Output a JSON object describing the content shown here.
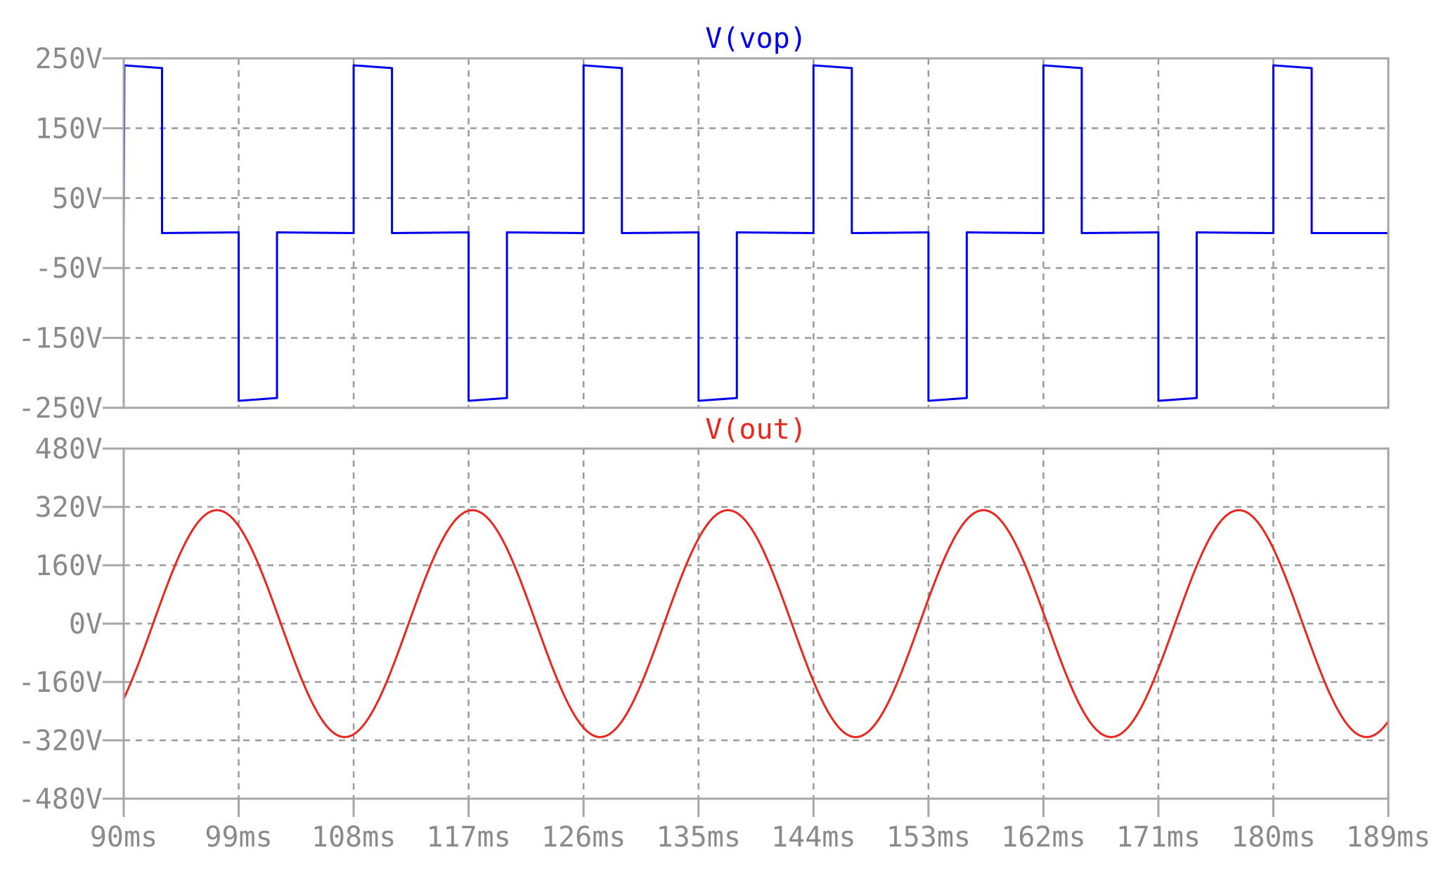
{
  "chart_data": [
    {
      "type": "line",
      "title": "V(vop)",
      "title_color": "#0000ee",
      "series": [
        {
          "name": "V(vop)",
          "color": "#0000ee",
          "x": [
            90,
            90.05,
            93,
            93,
            99,
            99,
            102,
            102,
            108,
            108,
            111,
            111,
            117,
            117,
            120,
            120,
            126,
            126,
            129,
            129,
            135,
            135,
            138,
            138,
            144,
            144,
            147,
            147,
            153,
            153,
            156,
            156,
            162,
            162,
            165,
            165,
            171,
            171,
            174,
            174,
            180,
            180,
            183,
            183,
            189
          ],
          "y": [
            0,
            240,
            236,
            0,
            1,
            -240,
            -236,
            1,
            0,
            240,
            236,
            0,
            1,
            -240,
            -236,
            1,
            0,
            240,
            236,
            0,
            1,
            -240,
            -236,
            1,
            0,
            240,
            236,
            0,
            1,
            -240,
            -236,
            1,
            0,
            240,
            236,
            0,
            1,
            -240,
            -236,
            1,
            0,
            240,
            236,
            0,
            0
          ]
        }
      ],
      "ylim": [
        -250,
        250
      ],
      "y_ticks": [
        250,
        150,
        50,
        -50,
        -150,
        -250
      ],
      "y_tick_labels": [
        "250V",
        "150V",
        "50V",
        "-50V",
        "-150V",
        "-250V"
      ],
      "grid": true
    },
    {
      "type": "line",
      "title": "V(out)",
      "title_color": "#e8281e",
      "series": [
        {
          "name": "V(out)",
          "color": "#e8281e",
          "sine": {
            "amplitude": 311,
            "period": 20,
            "peak_at": 97.3
          },
          "x_range": [
            90,
            189
          ]
        }
      ],
      "ylim": [
        -480,
        480
      ],
      "y_ticks": [
        480,
        320,
        160,
        0,
        -160,
        -320,
        -480
      ],
      "y_tick_labels": [
        "480V",
        "320V",
        "160V",
        "0V",
        "-160V",
        "-320V",
        "-480V"
      ],
      "grid": true
    }
  ],
  "x_axis": {
    "xlim": [
      90,
      189
    ],
    "ticks": [
      90,
      99,
      108,
      117,
      126,
      135,
      144,
      153,
      162,
      171,
      180,
      189
    ],
    "tick_labels": [
      "90ms",
      "99ms",
      "108ms",
      "117ms",
      "126ms",
      "135ms",
      "144ms",
      "153ms",
      "162ms",
      "171ms",
      "180ms",
      "189ms"
    ]
  }
}
